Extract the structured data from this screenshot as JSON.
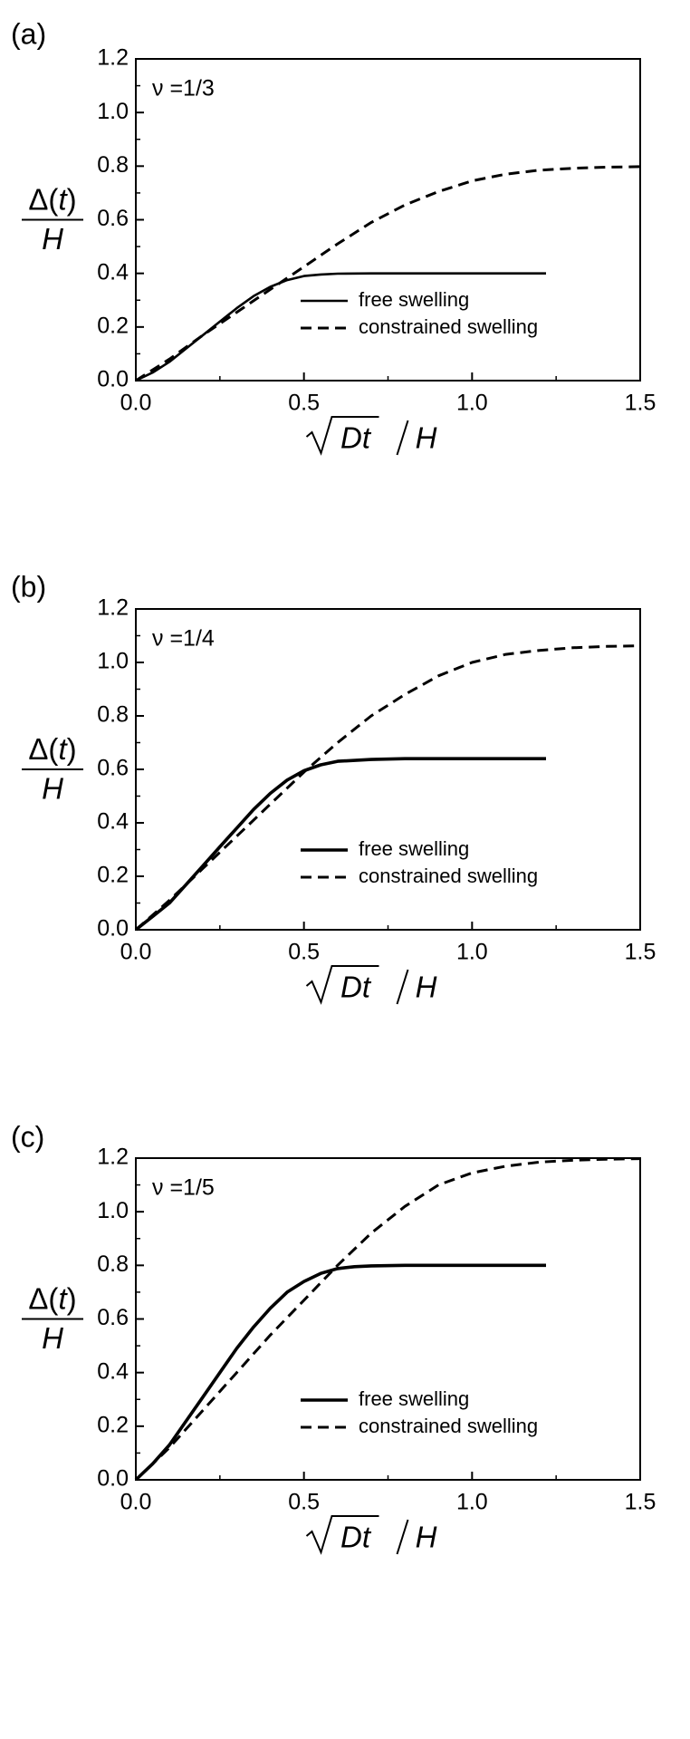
{
  "chart_data": [
    {
      "type": "line",
      "panel_label": "(a)",
      "annotation": "ν =1/3",
      "ylabel": {
        "num_a": "Δ(",
        "num_b": "t",
        "num_c": ")",
        "den": "H"
      },
      "xlabel": {
        "rad": "Dt",
        "den": "H"
      },
      "xlim": [
        0,
        1.5
      ],
      "ylim": [
        0,
        1.2
      ],
      "xticks": [
        "0.0",
        "0.5",
        "1.0",
        "1.5"
      ],
      "yticks": [
        "0.0",
        "0.2",
        "0.4",
        "0.6",
        "0.8",
        "1.0",
        "1.2"
      ],
      "legend_position": "lower-right",
      "series": [
        {
          "name": "free swelling",
          "style": "solid",
          "width": "thin",
          "x": [
            0,
            0.05,
            0.1,
            0.15,
            0.2,
            0.25,
            0.3,
            0.35,
            0.4,
            0.45,
            0.5,
            0.55,
            0.6,
            0.7,
            0.8,
            0.9,
            1.0,
            1.1,
            1.22
          ],
          "y": [
            0,
            0.03,
            0.07,
            0.12,
            0.17,
            0.22,
            0.27,
            0.315,
            0.35,
            0.375,
            0.39,
            0.396,
            0.399,
            0.4,
            0.4,
            0.4,
            0.4,
            0.4,
            0.4
          ]
        },
        {
          "name": "constrained swelling",
          "style": "dashed",
          "x": [
            0,
            0.05,
            0.1,
            0.15,
            0.2,
            0.3,
            0.4,
            0.5,
            0.6,
            0.7,
            0.8,
            0.9,
            1.0,
            1.1,
            1.2,
            1.3,
            1.4,
            1.5
          ],
          "y": [
            0,
            0.04,
            0.08,
            0.125,
            0.17,
            0.255,
            0.34,
            0.425,
            0.51,
            0.59,
            0.655,
            0.705,
            0.745,
            0.77,
            0.785,
            0.792,
            0.796,
            0.798
          ]
        }
      ]
    },
    {
      "type": "line",
      "panel_label": "(b)",
      "annotation": "ν =1/4",
      "ylabel": {
        "num_a": "Δ(",
        "num_b": "t",
        "num_c": ")",
        "den": "H"
      },
      "xlabel": {
        "rad": "Dt",
        "den": "H"
      },
      "xlim": [
        0,
        1.5
      ],
      "ylim": [
        0,
        1.2
      ],
      "xticks": [
        "0.0",
        "0.5",
        "1.0",
        "1.5"
      ],
      "yticks": [
        "0.0",
        "0.2",
        "0.4",
        "0.6",
        "0.8",
        "1.0",
        "1.2"
      ],
      "legend_position": "lower-right",
      "series": [
        {
          "name": "free swelling",
          "style": "solid",
          "width": "thick",
          "x": [
            0,
            0.05,
            0.1,
            0.15,
            0.2,
            0.25,
            0.3,
            0.35,
            0.4,
            0.45,
            0.5,
            0.55,
            0.6,
            0.7,
            0.8,
            0.9,
            1.0,
            1.1,
            1.22
          ],
          "y": [
            0,
            0.05,
            0.1,
            0.17,
            0.24,
            0.31,
            0.38,
            0.45,
            0.51,
            0.56,
            0.595,
            0.617,
            0.63,
            0.637,
            0.64,
            0.64,
            0.64,
            0.64,
            0.64
          ]
        },
        {
          "name": "constrained swelling",
          "style": "dashed",
          "x": [
            0,
            0.05,
            0.1,
            0.15,
            0.2,
            0.3,
            0.4,
            0.5,
            0.6,
            0.7,
            0.8,
            0.9,
            1.0,
            1.1,
            1.2,
            1.3,
            1.4,
            1.5
          ],
          "y": [
            0,
            0.055,
            0.11,
            0.17,
            0.23,
            0.35,
            0.47,
            0.59,
            0.7,
            0.8,
            0.88,
            0.95,
            1.0,
            1.03,
            1.045,
            1.055,
            1.06,
            1.062
          ]
        }
      ]
    },
    {
      "type": "line",
      "panel_label": "(c)",
      "annotation": "ν =1/5",
      "ylabel": {
        "num_a": "Δ(",
        "num_b": "t",
        "num_c": ")",
        "den": "H"
      },
      "xlabel": {
        "rad": "Dt",
        "den": "H"
      },
      "xlim": [
        0,
        1.5
      ],
      "ylim": [
        0,
        1.2
      ],
      "xticks": [
        "0.0",
        "0.5",
        "1.0",
        "1.5"
      ],
      "yticks": [
        "0.0",
        "0.2",
        "0.4",
        "0.6",
        "0.8",
        "1.0",
        "1.2"
      ],
      "legend_position": "lower-right",
      "series": [
        {
          "name": "free swelling",
          "style": "solid",
          "width": "thick",
          "x": [
            0,
            0.05,
            0.1,
            0.15,
            0.2,
            0.25,
            0.3,
            0.35,
            0.4,
            0.45,
            0.5,
            0.55,
            0.6,
            0.65,
            0.7,
            0.8,
            0.9,
            1.0,
            1.1,
            1.22
          ],
          "y": [
            0,
            0.06,
            0.13,
            0.22,
            0.31,
            0.4,
            0.49,
            0.57,
            0.64,
            0.7,
            0.74,
            0.77,
            0.788,
            0.795,
            0.798,
            0.8,
            0.8,
            0.8,
            0.8,
            0.8
          ]
        },
        {
          "name": "constrained swelling",
          "style": "dashed",
          "x": [
            0,
            0.05,
            0.1,
            0.15,
            0.2,
            0.3,
            0.4,
            0.5,
            0.6,
            0.7,
            0.8,
            0.9,
            1.0,
            1.1,
            1.2,
            1.3,
            1.4,
            1.5
          ],
          "y": [
            0,
            0.06,
            0.12,
            0.19,
            0.26,
            0.4,
            0.54,
            0.67,
            0.8,
            0.92,
            1.02,
            1.1,
            1.145,
            1.17,
            1.185,
            1.192,
            1.196,
            1.198
          ]
        }
      ]
    }
  ]
}
